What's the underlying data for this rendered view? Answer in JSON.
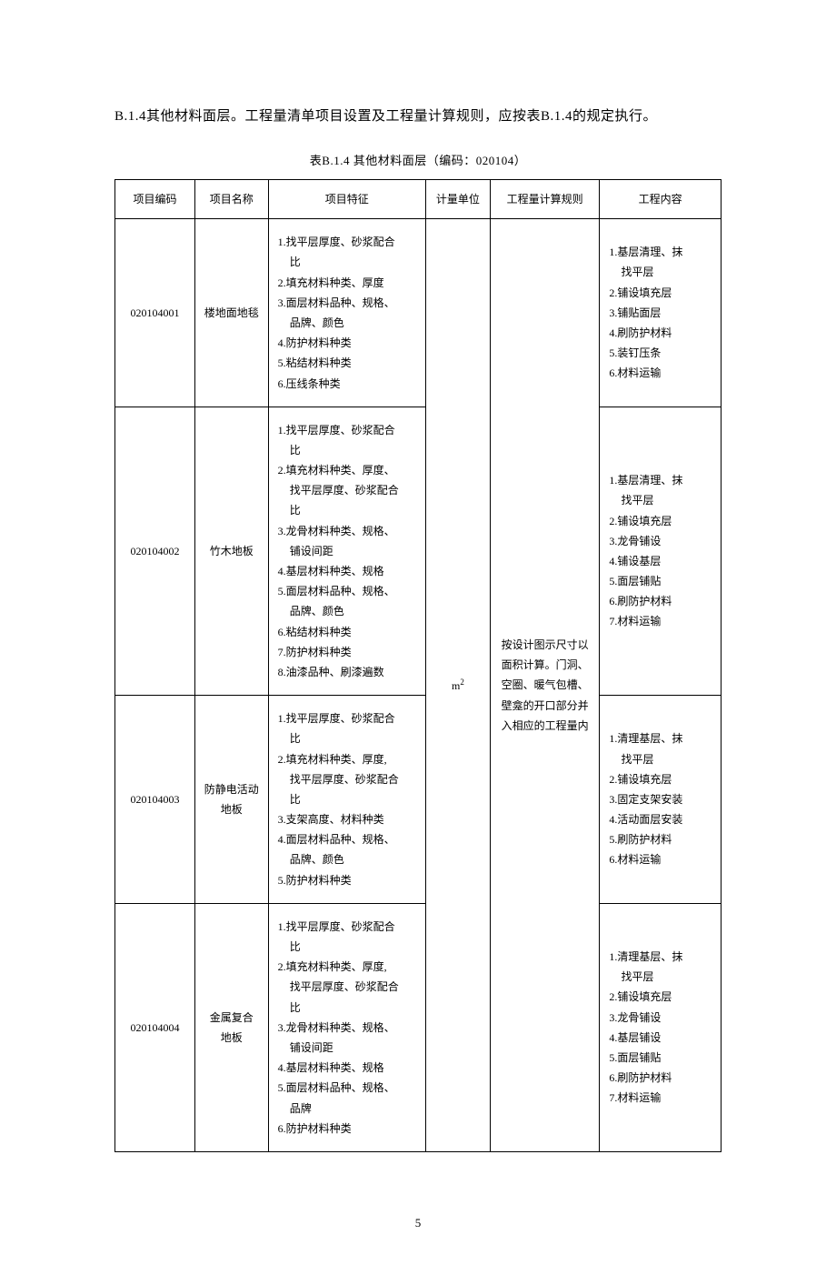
{
  "intro": "B.1.4其他材料面层。工程量清单项目设置及工程量计算规则，应按表B.1.4的规定执行。",
  "table_title": "表B.1.4 其他材料面层（编码：020104）",
  "headers": {
    "code": "项目编码",
    "name": "项目名称",
    "feat": "项目特征",
    "unit": "计量单位",
    "rule": "工程量计算规则",
    "content": "工程内容"
  },
  "unit_value": "m",
  "unit_sup": "2",
  "rule_text": "按设计图示尺寸以面积计算。门洞、空圈、暖气包槽、壁龛的开口部分并入相应的工程量内",
  "rows": [
    {
      "code": "020104001",
      "name": "楼地面地毯",
      "feat": [
        "1.找平层厚度、砂浆配合",
        "  比",
        "2.填充材料种类、厚度",
        "3.面层材料品种、规格、",
        "  品牌、颜色",
        "4.防护材料种类",
        "5.粘结材料种类",
        "6.压线条种类"
      ],
      "content": [
        "1.基层清理、抹",
        "  找平层",
        "2.铺设填充层",
        "3.铺贴面层",
        "4.刷防护材料",
        "5.装钉压条",
        "6.材料运输"
      ]
    },
    {
      "code": "020104002",
      "name": "竹木地板",
      "feat": [
        "1.找平层厚度、砂浆配合",
        "  比",
        "2.填充材料种类、厚度、",
        "  找平层厚度、砂浆配合",
        "  比",
        "3.龙骨材料种类、规格、",
        "  铺设间距",
        "4.基层材料种类、规格",
        "5.面层材料品种、规格、",
        "  品牌、颜色",
        "6.粘结材料种类",
        "7.防护材料种类",
        "8.油漆品种、刷漆遍数"
      ],
      "content": [
        "1.基层清理、抹",
        "  找平层",
        "2.铺设填充层",
        "3.龙骨铺设",
        "4.铺设基层",
        "5.面层铺贴",
        "6.刷防护材料",
        "7.材料运输"
      ]
    },
    {
      "code": "020104003",
      "name_l1": "防静电活动",
      "name_l2": "地板",
      "feat": [
        "1.找平层厚度、砂浆配合",
        "  比",
        "2.填充材料种类、厚度,",
        "  找平层厚度、砂浆配合",
        "  比",
        "3.支架高度、材料种类",
        "4.面层材料品种、规格、",
        "  品牌、颜色",
        "5.防护材料种类"
      ],
      "content": [
        "1.清理基层、抹",
        "  找平层",
        "2.铺设填充层",
        "3.固定支架安装",
        "4.活动面层安装",
        "5.刷防护材料",
        "6.材料运输"
      ]
    },
    {
      "code": "020104004",
      "name_l1": "金属复合",
      "name_l2": "地板",
      "feat": [
        "1.找平层厚度、砂浆配合",
        "  比",
        "2.填充材料种类、厚度,",
        "  找平层厚度、砂浆配合",
        "  比",
        "3.龙骨材料种类、规格、",
        "  铺设间距",
        "4.基层材料种类、规格",
        "5.面层材料品种、规格、",
        "  品牌",
        "6.防护材料种类"
      ],
      "content": [
        "1.清理基层、抹",
        "  找平层",
        "2.铺设填充层",
        "3.龙骨铺设",
        "4.基层铺设",
        "5.面层铺贴",
        "6.刷防护材料",
        "7.材料运输"
      ]
    }
  ],
  "page_number": "5"
}
